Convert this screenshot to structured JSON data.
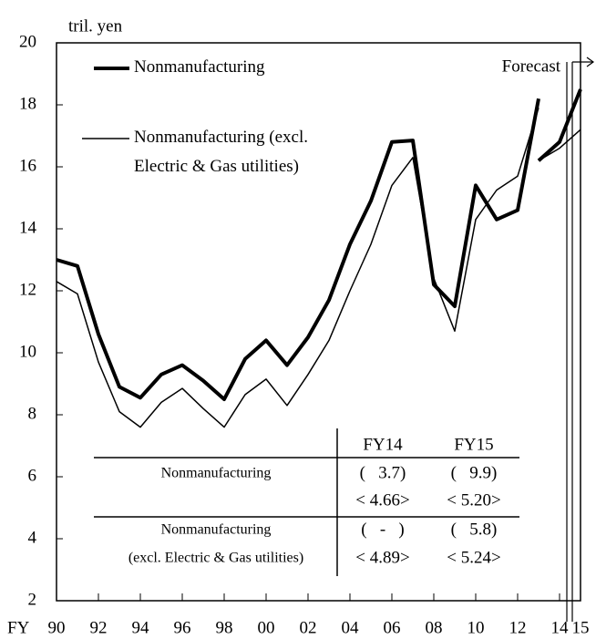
{
  "chart_data": {
    "type": "line",
    "y_label": "tril. yen",
    "x_label": "FY",
    "annotation": "Forecast",
    "x": [
      90,
      91,
      92,
      93,
      94,
      95,
      96,
      97,
      98,
      99,
      100,
      101,
      102,
      103,
      104,
      105,
      106,
      107,
      108,
      109,
      110,
      111,
      112,
      113,
      113,
      113,
      114,
      115
    ],
    "series": [
      {
        "name": "Nonmanufacturing",
        "color": "#000000",
        "width": 4,
        "values": [
          13.0,
          12.8,
          10.6,
          8.9,
          8.55,
          9.3,
          9.6,
          9.1,
          8.5,
          9.8,
          10.4,
          9.6,
          10.5,
          11.7,
          13.5,
          14.9,
          16.8,
          16.85,
          12.2,
          11.5,
          15.4,
          14.3,
          14.6,
          18.2,
          null,
          16.2,
          16.8,
          18.5
        ]
      },
      {
        "name": "Nonmanufacturing (excl.\nElectric & Gas utilities)",
        "color": "#000000",
        "width": 1.5,
        "values": [
          12.3,
          11.9,
          9.7,
          8.1,
          7.6,
          8.4,
          8.85,
          8.2,
          7.6,
          8.65,
          9.15,
          8.3,
          9.3,
          10.4,
          12.0,
          13.5,
          15.4,
          16.3,
          12.4,
          10.7,
          14.3,
          15.25,
          15.7,
          17.9,
          null,
          16.2,
          16.6,
          17.2
        ]
      }
    ],
    "xlim": [
      90,
      115
    ],
    "xticks": [
      {
        "value": 90,
        "label": "90"
      },
      {
        "value": 92,
        "label": "92"
      },
      {
        "value": 94,
        "label": "94"
      },
      {
        "value": 96,
        "label": "96"
      },
      {
        "value": 98,
        "label": "98"
      },
      {
        "value": 100,
        "label": "00"
      },
      {
        "value": 102,
        "label": "02"
      },
      {
        "value": 104,
        "label": "04"
      },
      {
        "value": 106,
        "label": "06"
      },
      {
        "value": 108,
        "label": "08"
      },
      {
        "value": 110,
        "label": "10"
      },
      {
        "value": 112,
        "label": "12"
      },
      {
        "value": 114,
        "label": "14"
      },
      {
        "value": 115,
        "label": "15"
      }
    ],
    "ylim": [
      2,
      20
    ],
    "yticks": [
      2,
      4,
      6,
      8,
      10,
      12,
      14,
      16,
      18,
      20
    ],
    "table": {
      "header": [
        "FY14",
        "FY15"
      ],
      "rows": [
        {
          "label": [
            "Nonmanufacturing"
          ],
          "cells": [
            [
              "(   3.7)",
              "(   9.9)"
            ],
            [
              "< 4.66>",
              "< 5.20>"
            ]
          ]
        },
        {
          "label": [
            "Nonmanufacturing",
            "(excl. Electric & Gas utilities)"
          ],
          "cells": [
            [
              "(   -   )",
              "(   5.8)"
            ],
            [
              "< 4.89>",
              "< 5.24>"
            ]
          ]
        }
      ]
    }
  }
}
